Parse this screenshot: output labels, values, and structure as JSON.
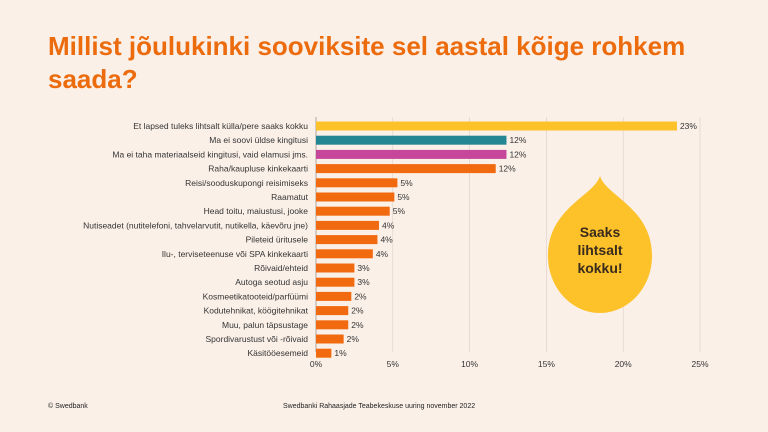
{
  "title": "Millist jõulukinki sooviksite sel aastal kõige rohkem saada?",
  "callout": [
    "Saaks",
    "lihtsalt",
    "kokku!"
  ],
  "footer_left": "© Swedbank",
  "footer_center": "Swedbanki Rahaasjade Teabekeskuse uuring november 2022",
  "colors": {
    "background": "#fbf0e8",
    "title": "#ec6b0d",
    "bar_default": "#f26a10",
    "bar_highlight_1": "#fdc129",
    "bar_highlight_2": "#248693",
    "bar_highlight_3": "#c6479a",
    "callout": "#fdc129",
    "grid": "#d9cfc7"
  },
  "chart_data": {
    "type": "bar",
    "orientation": "horizontal",
    "categories": [
      "Et lapsed tuleks lihtsalt külla/pere saaks kokku",
      "Ma ei soovi üldse kingitusi",
      "Ma ei taha materiaalseid kingitusi, vaid elamusi jms.",
      "Raha/kaupluse kinkekaarti",
      "Reisi/sooduskupongi reisimiseks",
      "Raamatut",
      "Head toitu, maiustusi, jooke",
      "Nutiseadet (nutitelefoni, tahvelarvutit, nutikella, käevõru jne)",
      "Pileteid üritusele",
      "Ilu-, terviseteenuse või SPA kinkekaarti",
      "Rõivaid/ehteid",
      "Autoga seotud asju",
      "Kosmeetikatooteid/parfüümi",
      "Kodutehnikat, köögitehnikat",
      "Muu, palun täpsustage",
      "Spordivarustust või -rõivaid",
      "Käsitööesemeid"
    ],
    "values": [
      23.5,
      12.4,
      12.4,
      11.7,
      5.3,
      5.1,
      4.8,
      4.1,
      4.0,
      3.7,
      2.5,
      2.5,
      2.3,
      2.1,
      2.1,
      1.8,
      1.0
    ],
    "labels": [
      "23%",
      "12%",
      "12%",
      "12%",
      "5%",
      "5%",
      "5%",
      "4%",
      "4%",
      "4%",
      "3%",
      "3%",
      "2%",
      "2%",
      "2%",
      "2%",
      "1%"
    ],
    "bar_colors": [
      "#fdc129",
      "#248693",
      "#c6479a",
      "#f26a10",
      "#f26a10",
      "#f26a10",
      "#f26a10",
      "#f26a10",
      "#f26a10",
      "#f26a10",
      "#f26a10",
      "#f26a10",
      "#f26a10",
      "#f26a10",
      "#f26a10",
      "#f26a10",
      "#f26a10"
    ],
    "xlim": [
      0,
      25
    ],
    "xticks": [
      0,
      5,
      10,
      15,
      20,
      25
    ],
    "xtick_labels": [
      "0%",
      "5%",
      "10%",
      "15%",
      "20%",
      "25%"
    ],
    "grid": true
  }
}
